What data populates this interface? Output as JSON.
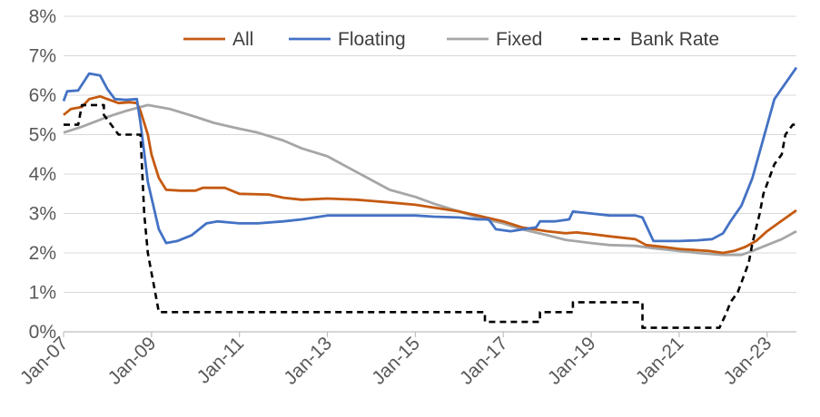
{
  "colors": {
    "all": "#c55a11",
    "floating": "#4472c4",
    "fixed": "#a6a6a6",
    "bank_rate": "#000000",
    "grid": "#d9d9d9",
    "axis": "#bfbfbf",
    "text": "#595959"
  },
  "chart_data": {
    "type": "line",
    "title": "",
    "xlabel": "",
    "ylabel": "",
    "grid": "horizontal",
    "legend_position": "top",
    "xlim": [
      "2007-01",
      "2023-09"
    ],
    "ylim": [
      0,
      8
    ],
    "x_ticks": [
      {
        "label": "Jan-07",
        "date": "2007-01"
      },
      {
        "label": "Jan-09",
        "date": "2009-01"
      },
      {
        "label": "Jan-11",
        "date": "2011-01"
      },
      {
        "label": "Jan-13",
        "date": "2013-01"
      },
      {
        "label": "Jan-15",
        "date": "2015-01"
      },
      {
        "label": "Jan-17",
        "date": "2017-01"
      },
      {
        "label": "Jan-19",
        "date": "2019-01"
      },
      {
        "label": "Jan-21",
        "date": "2021-01"
      },
      {
        "label": "Jan-23",
        "date": "2023-01"
      }
    ],
    "y_ticks": [
      {
        "label": "0%",
        "value": 0
      },
      {
        "label": "1%",
        "value": 1
      },
      {
        "label": "2%",
        "value": 2
      },
      {
        "label": "3%",
        "value": 3
      },
      {
        "label": "4%",
        "value": 4
      },
      {
        "label": "5%",
        "value": 5
      },
      {
        "label": "6%",
        "value": 6
      },
      {
        "label": "7%",
        "value": 7
      },
      {
        "label": "8%",
        "value": 8
      }
    ],
    "series": [
      {
        "key": "all",
        "name": "All",
        "style": "solid",
        "points": [
          [
            "2007-01",
            5.5
          ],
          [
            "2007-03",
            5.65
          ],
          [
            "2007-06",
            5.7
          ],
          [
            "2007-08",
            5.9
          ],
          [
            "2007-11",
            5.97
          ],
          [
            "2008-01",
            5.9
          ],
          [
            "2008-04",
            5.8
          ],
          [
            "2008-07",
            5.82
          ],
          [
            "2008-09",
            5.8
          ],
          [
            "2008-10",
            5.6
          ],
          [
            "2008-12",
            5.0
          ],
          [
            "2009-01",
            4.5
          ],
          [
            "2009-03",
            3.9
          ],
          [
            "2009-05",
            3.6
          ],
          [
            "2009-09",
            3.58
          ],
          [
            "2010-01",
            3.58
          ],
          [
            "2010-03",
            3.65
          ],
          [
            "2010-09",
            3.65
          ],
          [
            "2011-01",
            3.5
          ],
          [
            "2011-09",
            3.48
          ],
          [
            "2012-01",
            3.4
          ],
          [
            "2012-06",
            3.35
          ],
          [
            "2013-01",
            3.38
          ],
          [
            "2013-09",
            3.35
          ],
          [
            "2014-01",
            3.32
          ],
          [
            "2014-06",
            3.28
          ],
          [
            "2015-01",
            3.22
          ],
          [
            "2015-06",
            3.15
          ],
          [
            "2016-01",
            3.05
          ],
          [
            "2016-06",
            2.95
          ],
          [
            "2017-01",
            2.8
          ],
          [
            "2017-06",
            2.65
          ],
          [
            "2018-01",
            2.55
          ],
          [
            "2018-06",
            2.5
          ],
          [
            "2018-09",
            2.52
          ],
          [
            "2019-01",
            2.48
          ],
          [
            "2019-06",
            2.42
          ],
          [
            "2020-01",
            2.35
          ],
          [
            "2020-04",
            2.2
          ],
          [
            "2020-09",
            2.15
          ],
          [
            "2021-01",
            2.1
          ],
          [
            "2021-06",
            2.07
          ],
          [
            "2021-09",
            2.05
          ],
          [
            "2022-01",
            2.0
          ],
          [
            "2022-04",
            2.05
          ],
          [
            "2022-07",
            2.15
          ],
          [
            "2022-10",
            2.3
          ],
          [
            "2023-01",
            2.55
          ],
          [
            "2023-04",
            2.75
          ],
          [
            "2023-07",
            2.95
          ],
          [
            "2023-09",
            3.08
          ]
        ]
      },
      {
        "key": "floating",
        "name": "Floating",
        "style": "solid",
        "points": [
          [
            "2007-01",
            5.85
          ],
          [
            "2007-02",
            6.1
          ],
          [
            "2007-05",
            6.12
          ],
          [
            "2007-08",
            6.55
          ],
          [
            "2007-11",
            6.5
          ],
          [
            "2008-01",
            6.15
          ],
          [
            "2008-03",
            5.9
          ],
          [
            "2008-06",
            5.88
          ],
          [
            "2008-09",
            5.9
          ],
          [
            "2008-10",
            5.3
          ],
          [
            "2008-12",
            3.8
          ],
          [
            "2009-03",
            2.6
          ],
          [
            "2009-05",
            2.25
          ],
          [
            "2009-08",
            2.3
          ],
          [
            "2009-12",
            2.45
          ],
          [
            "2010-04",
            2.75
          ],
          [
            "2010-07",
            2.8
          ],
          [
            "2011-01",
            2.75
          ],
          [
            "2011-06",
            2.75
          ],
          [
            "2012-01",
            2.8
          ],
          [
            "2012-06",
            2.85
          ],
          [
            "2013-01",
            2.95
          ],
          [
            "2013-06",
            2.95
          ],
          [
            "2014-01",
            2.95
          ],
          [
            "2014-06",
            2.95
          ],
          [
            "2015-01",
            2.95
          ],
          [
            "2015-06",
            2.92
          ],
          [
            "2016-01",
            2.9
          ],
          [
            "2016-06",
            2.85
          ],
          [
            "2016-09",
            2.85
          ],
          [
            "2016-11",
            2.6
          ],
          [
            "2017-03",
            2.55
          ],
          [
            "2017-10",
            2.65
          ],
          [
            "2017-11",
            2.8
          ],
          [
            "2018-03",
            2.8
          ],
          [
            "2018-07",
            2.85
          ],
          [
            "2018-08",
            3.05
          ],
          [
            "2019-01",
            3.0
          ],
          [
            "2019-06",
            2.95
          ],
          [
            "2020-01",
            2.95
          ],
          [
            "2020-03",
            2.9
          ],
          [
            "2020-06",
            2.3
          ],
          [
            "2021-01",
            2.3
          ],
          [
            "2021-06",
            2.32
          ],
          [
            "2021-10",
            2.35
          ],
          [
            "2022-01",
            2.5
          ],
          [
            "2022-03",
            2.8
          ],
          [
            "2022-06",
            3.2
          ],
          [
            "2022-09",
            3.9
          ],
          [
            "2022-12",
            4.9
          ],
          [
            "2023-03",
            5.9
          ],
          [
            "2023-06",
            6.3
          ],
          [
            "2023-09",
            6.7
          ]
        ]
      },
      {
        "key": "fixed",
        "name": "Fixed",
        "style": "solid",
        "points": [
          [
            "2007-01",
            5.05
          ],
          [
            "2007-06",
            5.2
          ],
          [
            "2008-01",
            5.45
          ],
          [
            "2008-06",
            5.6
          ],
          [
            "2008-12",
            5.75
          ],
          [
            "2009-03",
            5.7
          ],
          [
            "2009-06",
            5.65
          ],
          [
            "2010-01",
            5.45
          ],
          [
            "2010-06",
            5.3
          ],
          [
            "2011-01",
            5.15
          ],
          [
            "2011-06",
            5.05
          ],
          [
            "2012-01",
            4.85
          ],
          [
            "2012-06",
            4.65
          ],
          [
            "2013-01",
            4.45
          ],
          [
            "2013-06",
            4.2
          ],
          [
            "2014-01",
            3.85
          ],
          [
            "2014-06",
            3.6
          ],
          [
            "2015-01",
            3.42
          ],
          [
            "2015-06",
            3.25
          ],
          [
            "2016-01",
            3.05
          ],
          [
            "2016-06",
            2.9
          ],
          [
            "2017-01",
            2.75
          ],
          [
            "2017-06",
            2.6
          ],
          [
            "2018-01",
            2.45
          ],
          [
            "2018-06",
            2.33
          ],
          [
            "2019-01",
            2.25
          ],
          [
            "2019-06",
            2.2
          ],
          [
            "2020-01",
            2.18
          ],
          [
            "2020-06",
            2.12
          ],
          [
            "2021-01",
            2.05
          ],
          [
            "2021-06",
            2.0
          ],
          [
            "2022-01",
            1.95
          ],
          [
            "2022-06",
            1.95
          ],
          [
            "2022-09",
            2.05
          ],
          [
            "2023-01",
            2.2
          ],
          [
            "2023-05",
            2.35
          ],
          [
            "2023-09",
            2.55
          ]
        ]
      },
      {
        "key": "bank_rate",
        "name": "Bank Rate",
        "style": "dashed",
        "points": [
          [
            "2007-01",
            5.25
          ],
          [
            "2007-05",
            5.25
          ],
          [
            "2007-06",
            5.75
          ],
          [
            "2007-12",
            5.75
          ],
          [
            "2007-12",
            5.5
          ],
          [
            "2008-02",
            5.25
          ],
          [
            "2008-04",
            5.0
          ],
          [
            "2008-10",
            5.0
          ],
          [
            "2008-11",
            3.0
          ],
          [
            "2008-12",
            2.0
          ],
          [
            "2009-01",
            1.5
          ],
          [
            "2009-02",
            1.0
          ],
          [
            "2009-03",
            0.5
          ],
          [
            "2016-08",
            0.5
          ],
          [
            "2016-08",
            0.25
          ],
          [
            "2017-11",
            0.25
          ],
          [
            "2017-11",
            0.5
          ],
          [
            "2018-08",
            0.5
          ],
          [
            "2018-08",
            0.75
          ],
          [
            "2020-03",
            0.75
          ],
          [
            "2020-03",
            0.1
          ],
          [
            "2021-12",
            0.1
          ],
          [
            "2022-02",
            0.5
          ],
          [
            "2022-03",
            0.75
          ],
          [
            "2022-05",
            1.0
          ],
          [
            "2022-06",
            1.25
          ],
          [
            "2022-08",
            1.75
          ],
          [
            "2022-09",
            2.25
          ],
          [
            "2022-11",
            3.0
          ],
          [
            "2022-12",
            3.5
          ],
          [
            "2023-02",
            4.0
          ],
          [
            "2023-03",
            4.25
          ],
          [
            "2023-05",
            4.5
          ],
          [
            "2023-06",
            5.0
          ],
          [
            "2023-08",
            5.25
          ],
          [
            "2023-09",
            5.25
          ]
        ]
      }
    ]
  }
}
